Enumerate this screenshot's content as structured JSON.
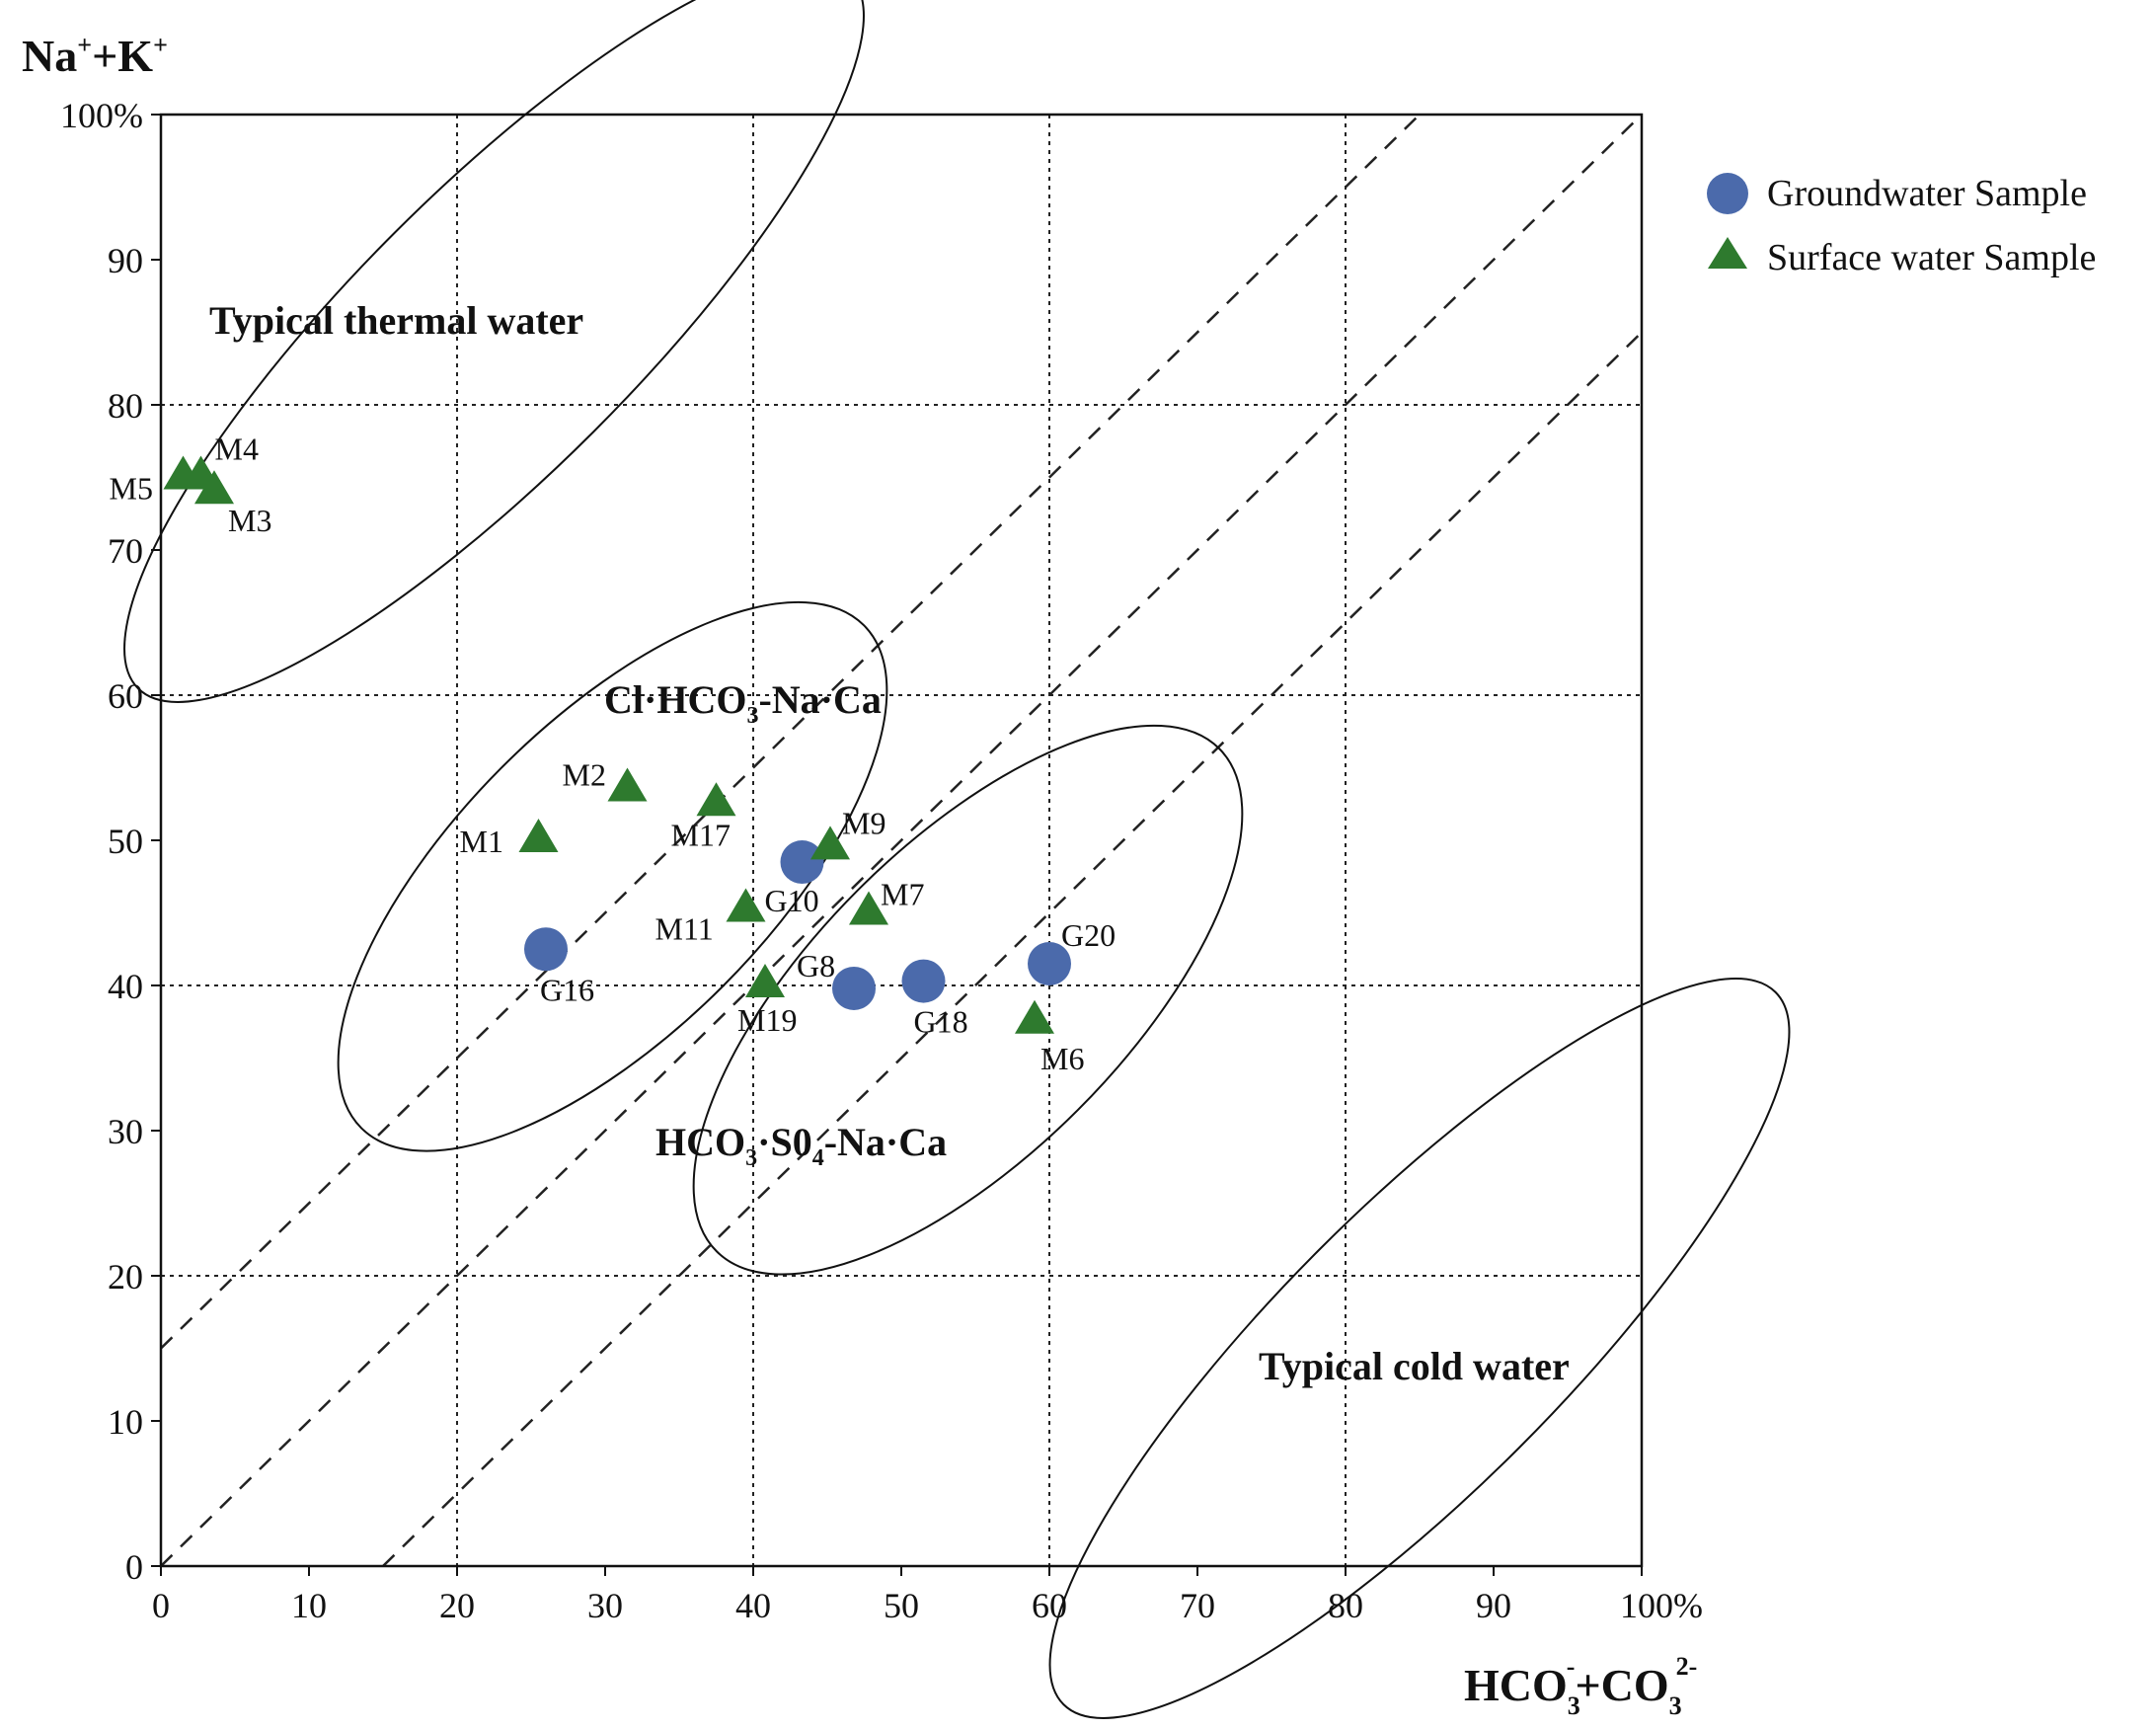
{
  "chart_data": {
    "type": "scatter",
    "xlabel": {
      "main": "HCO",
      "sub1": "3",
      "sup1": "-",
      "mid": "+CO",
      "sub2": "3",
      "sup2": "2-"
    },
    "ylabel": {
      "a": "Na",
      "sup1": "+",
      "b": "+K",
      "sup2": "+"
    },
    "xlim": [
      0,
      100
    ],
    "ylim": [
      0,
      100
    ],
    "x_ticks": [
      "0",
      "10",
      "20",
      "30",
      "40",
      "50",
      "60",
      "70",
      "80",
      "90",
      "100%"
    ],
    "y_ticks": [
      "0",
      "10",
      "20",
      "30",
      "40",
      "50",
      "60",
      "70",
      "80",
      "90",
      "100%"
    ],
    "grid_major_x": [
      20,
      40,
      60,
      80
    ],
    "grid_major_y": [
      20,
      40,
      60,
      80
    ],
    "diagonal_lines": [
      {
        "x0": 0,
        "y0": 15,
        "x1": 85,
        "y1": 100
      },
      {
        "x0": 0,
        "y0": 0,
        "x1": 100,
        "y1": 100
      },
      {
        "x0": 15,
        "y0": 0,
        "x1": 100,
        "y1": 85
      }
    ],
    "regions": [
      {
        "name": "thermal",
        "label": "Typical thermal water",
        "cx": 22.5,
        "cy": 85,
        "rx": 34,
        "ry": 9.5,
        "angle": 45
      },
      {
        "name": "cl-hco3",
        "label_parts": [
          "Cl·HCO",
          "3",
          "-Na·Ca"
        ],
        "cx": 30.5,
        "cy": 47.5,
        "rx": 24,
        "ry": 10.5,
        "angle": 45
      },
      {
        "name": "hco3-so4",
        "label_parts": [
          "HCO",
          "3",
          "·S0",
          "4",
          "-Na·Ca"
        ],
        "cx": 54.5,
        "cy": 39,
        "rx": 24,
        "ry": 10.5,
        "angle": 45
      },
      {
        "name": "cold",
        "label": "Typical cold water",
        "cx": 85,
        "cy": 15,
        "rx": 34,
        "ry": 9.5,
        "angle": 45
      }
    ],
    "series": [
      {
        "name": "Groundwater Sample",
        "marker": "circle",
        "color": "#4b6aab",
        "points": [
          {
            "label": "G10",
            "x": 43.3,
            "y": 48.5
          },
          {
            "label": "G16",
            "x": 26,
            "y": 42.5
          },
          {
            "label": "G8",
            "x": 46.8,
            "y": 39.8
          },
          {
            "label": "G18",
            "x": 51.5,
            "y": 40.3
          },
          {
            "label": "G20",
            "x": 60,
            "y": 41.5
          }
        ]
      },
      {
        "name": "Surface water Sample",
        "marker": "triangle",
        "color": "#2e7a2e",
        "points": [
          {
            "label": "M5",
            "x": 1.5,
            "y": 75
          },
          {
            "label": "M4",
            "x": 2.7,
            "y": 75
          },
          {
            "label": "M3",
            "x": 3.6,
            "y": 74
          },
          {
            "label": "M2",
            "x": 31.5,
            "y": 53.5
          },
          {
            "label": "M1",
            "x": 25.5,
            "y": 50
          },
          {
            "label": "M17",
            "x": 37.5,
            "y": 52.5
          },
          {
            "label": "M9",
            "x": 45.2,
            "y": 49.5
          },
          {
            "label": "M11",
            "x": 39.5,
            "y": 45.2
          },
          {
            "label": "M7",
            "x": 47.8,
            "y": 45
          },
          {
            "label": "M19",
            "x": 40.8,
            "y": 40
          },
          {
            "label": "M6",
            "x": 59,
            "y": 37.5
          }
        ]
      }
    ],
    "legend": "top-right"
  }
}
